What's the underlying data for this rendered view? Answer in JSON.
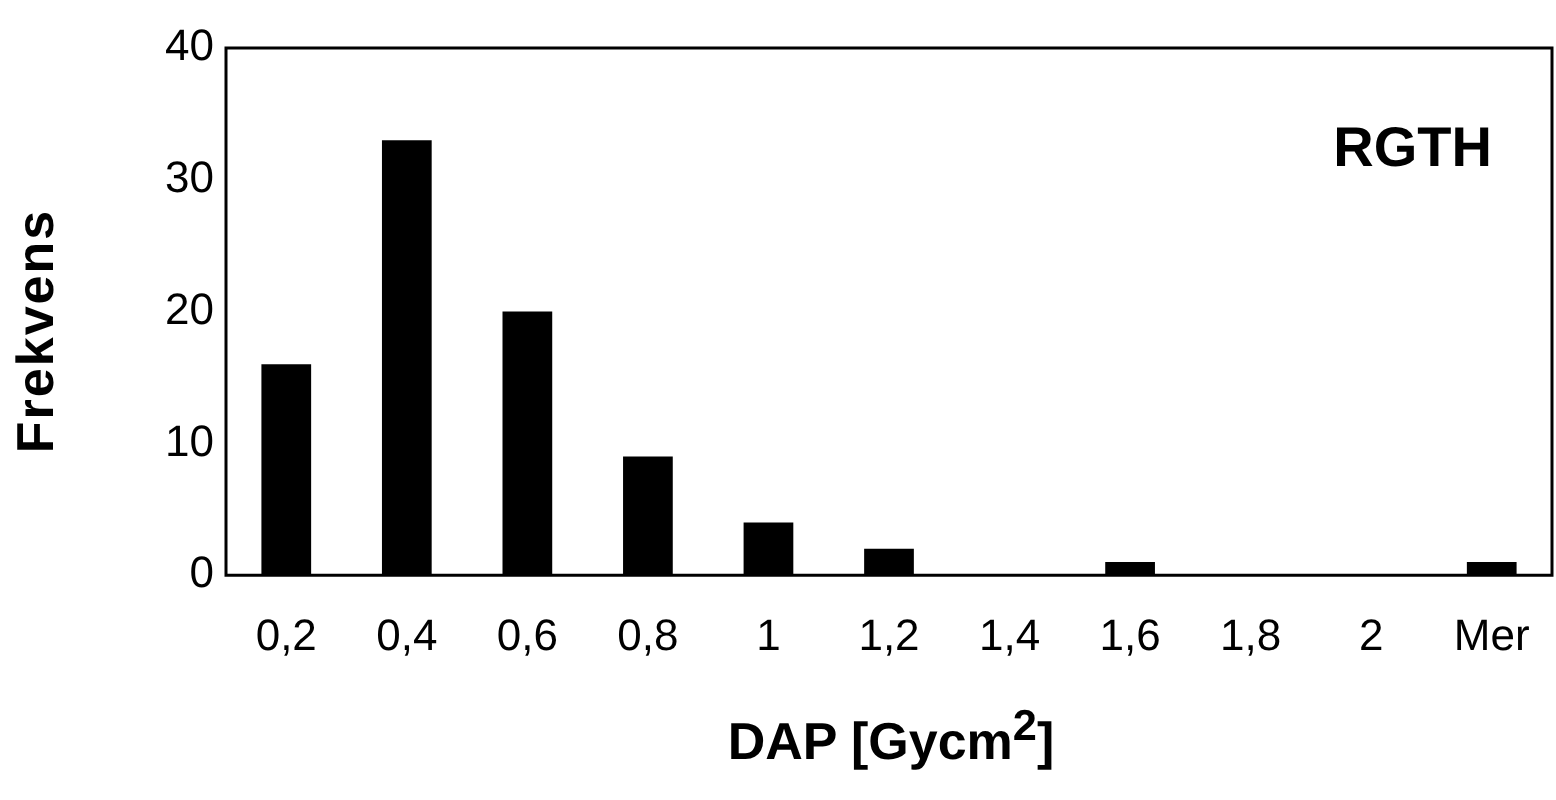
{
  "chart_data": {
    "type": "bar",
    "xlabel": "DAP [Gycm$^{2}$]",
    "ylabel": "Frekvens",
    "categories": [
      "0,2",
      "0,4",
      "0,6",
      "0,8",
      "1",
      "1,2",
      "1,4",
      "1,6",
      "1,8",
      "2",
      "Mer"
    ],
    "values": [
      16,
      33,
      20,
      9,
      4,
      2,
      0,
      1,
      0,
      0,
      1
    ],
    "color": "#000000",
    "ylim": [
      0,
      40
    ],
    "yticks": [
      0,
      10,
      20,
      30,
      40
    ],
    "grid": false,
    "legend": false,
    "annotations": [
      "RGTH"
    ]
  }
}
